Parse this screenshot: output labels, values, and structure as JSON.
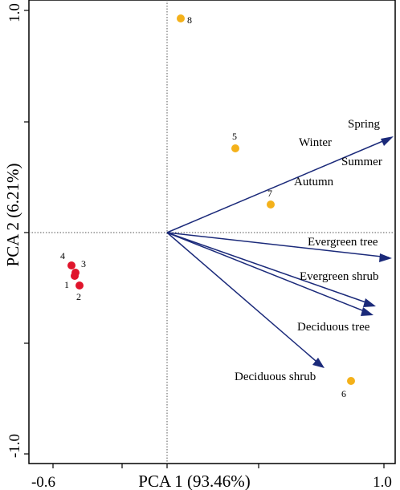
{
  "chart_data": {
    "type": "scatter",
    "title": "",
    "xlabel": "PCA 1 (93.46%)",
    "ylabel": "PCA 2 (6.21%)",
    "xlim": [
      -0.65,
      1.0
    ],
    "ylim": [
      -1.03,
      1.03
    ],
    "x_ticks": [
      -0.6,
      1.0
    ],
    "y_ticks": [
      1.0,
      -1.0
    ],
    "grid": false,
    "zero_lines": "dotted",
    "colors": {
      "red": "#e0142b",
      "orange": "#f4b11a",
      "arrow": "#1b2a7a"
    },
    "points": [
      {
        "label": "1",
        "x": -0.47,
        "y": -0.195,
        "color": "red"
      },
      {
        "label": "2",
        "x": -0.455,
        "y": -0.245,
        "color": "red"
      },
      {
        "label": "3",
        "x": -0.465,
        "y": -0.19,
        "color": "red"
      },
      {
        "label": "4",
        "x": -0.475,
        "y": -0.15,
        "color": "red"
      },
      {
        "label": "5",
        "x": 0.33,
        "y": 0.39,
        "color": "orange"
      },
      {
        "label": "6",
        "x": 0.88,
        "y": -0.69,
        "color": "orange"
      },
      {
        "label": "7",
        "x": 0.5,
        "y": 0.13,
        "color": "orange"
      },
      {
        "label": "8",
        "x": 0.065,
        "y": 0.98,
        "color": "orange"
      }
    ],
    "vectors": [
      {
        "label": "Spring",
        "x": 0.98,
        "y": 0.44
      },
      {
        "label": "Winter",
        "x": 0.98,
        "y": 0.44
      },
      {
        "label": "Summer",
        "x": 0.98,
        "y": 0.44
      },
      {
        "label": "Autumn",
        "x": 0.98,
        "y": 0.44
      },
      {
        "label": "Evergreen tree",
        "x": 1.07,
        "y": -0.12
      },
      {
        "label": "Evergreen shrub",
        "x": 0.99,
        "y": -0.33
      },
      {
        "label": "Deciduous tree",
        "x": 0.98,
        "y": -0.35
      },
      {
        "label": "Deciduous shrub",
        "x": 0.75,
        "y": -0.62
      }
    ]
  }
}
